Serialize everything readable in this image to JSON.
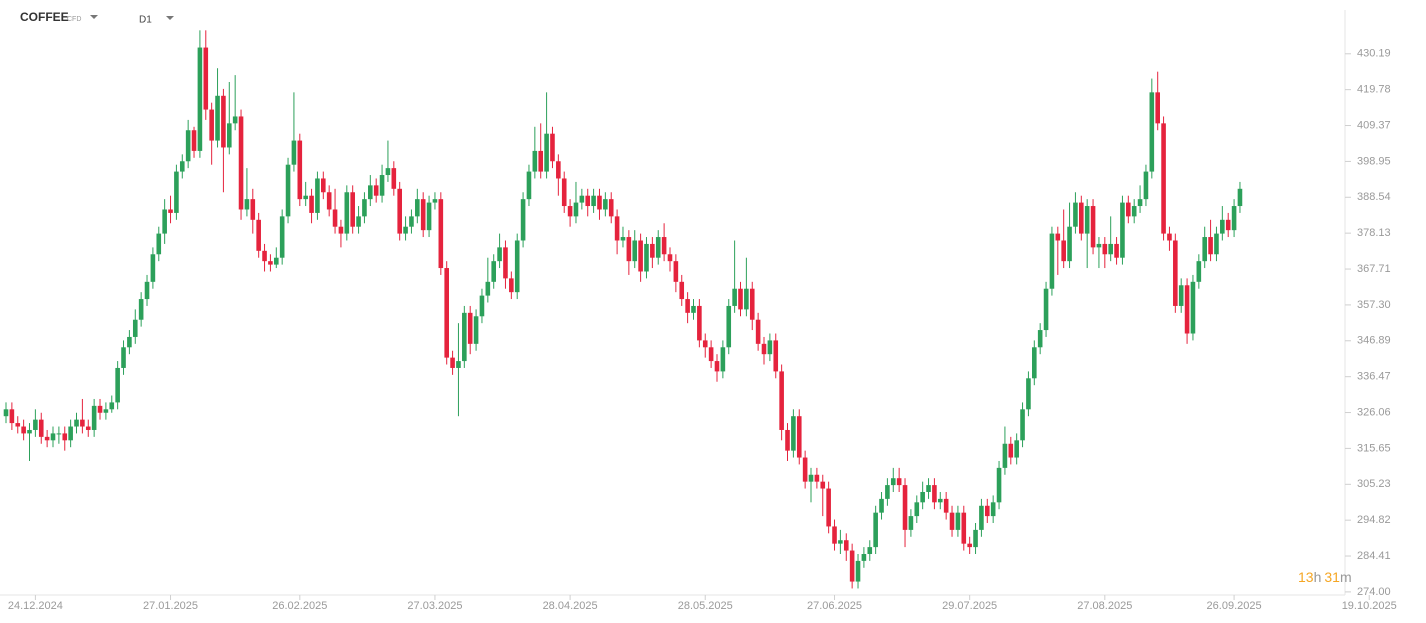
{
  "chart_data": {
    "type": "candlestick",
    "title": "COFFEE",
    "subtitle": "CFD",
    "timeframe": "D1",
    "countdown": [
      "13",
      "h",
      "31",
      "m"
    ],
    "up_color": "#2ca05a",
    "down_color": "#e5233d",
    "ylim": [
      273.1,
      442.9
    ],
    "yticks": [
      {
        "value": 274,
        "label": "274.00"
      },
      284.41,
      294.82,
      305.23,
      315.65,
      326.06,
      336.47,
      346.89,
      {
        "value": 357.3,
        "label": "357.30"
      },
      367.71,
      378.13,
      388.54,
      398.95,
      409.37,
      419.78,
      430.19
    ],
    "categories": [
      null,
      null,
      null,
      null,
      null,
      "24.12.2024",
      null,
      null,
      null,
      null,
      null,
      null,
      null,
      null,
      null,
      null,
      null,
      null,
      null,
      null,
      null,
      null,
      null,
      null,
      null,
      null,
      null,
      null,
      "27.01.2025",
      null,
      null,
      null,
      null,
      null,
      null,
      null,
      null,
      null,
      null,
      null,
      null,
      null,
      null,
      null,
      null,
      null,
      null,
      null,
      null,
      null,
      "26.02.2025",
      null,
      null,
      null,
      null,
      null,
      null,
      null,
      null,
      null,
      null,
      null,
      null,
      null,
      null,
      null,
      null,
      null,
      null,
      null,
      null,
      null,
      null,
      "27.03.2025",
      null,
      null,
      null,
      null,
      null,
      null,
      null,
      null,
      null,
      null,
      null,
      null,
      null,
      null,
      null,
      null,
      null,
      null,
      null,
      null,
      null,
      null,
      "28.04.2025",
      null,
      null,
      null,
      null,
      null,
      null,
      null,
      null,
      null,
      null,
      null,
      null,
      null,
      null,
      null,
      null,
      null,
      null,
      null,
      null,
      null,
      null,
      "28.05.2025",
      null,
      null,
      null,
      null,
      null,
      null,
      null,
      null,
      null,
      null,
      null,
      null,
      null,
      null,
      null,
      null,
      null,
      null,
      null,
      null,
      null,
      "27.06.2025",
      null,
      null,
      null,
      null,
      null,
      null,
      null,
      null,
      null,
      null,
      null,
      null,
      null,
      null,
      null,
      null,
      null,
      null,
      null,
      null,
      null,
      null,
      "29.07.2025",
      null,
      null,
      null,
      null,
      null,
      null,
      null,
      null,
      null,
      null,
      null,
      null,
      null,
      null,
      null,
      null,
      null,
      null,
      null,
      null,
      null,
      null,
      "27.08.2025",
      null,
      null,
      null,
      null,
      null,
      null,
      null,
      null,
      null,
      null,
      null,
      null,
      null,
      null,
      null,
      null,
      null,
      null,
      null,
      null,
      null,
      "26.09.2025",
      null,
      null,
      null,
      null,
      null,
      null,
      null,
      null,
      null,
      null,
      null,
      null,
      null,
      null,
      null,
      null,
      null,
      null,
      null,
      null,
      null,
      null,
      "19.10.2025"
    ],
    "open": [
      325,
      327,
      323,
      322,
      320,
      321,
      324,
      319,
      318,
      320,
      320,
      318,
      322,
      324,
      322,
      321,
      328,
      326,
      327,
      329,
      339,
      345,
      348,
      353,
      359,
      364,
      372,
      378,
      385,
      384,
      396,
      399,
      408,
      402,
      432,
      414,
      405,
      418,
      403,
      410,
      412,
      385,
      388,
      382,
      373,
      370,
      369,
      371,
      383,
      398,
      405,
      388,
      389,
      384,
      394,
      390,
      385,
      380,
      378,
      390,
      380,
      383,
      388,
      392,
      389,
      395,
      397,
      391,
      378,
      380,
      383,
      388,
      379,
      387,
      388,
      368,
      342,
      339,
      341,
      355,
      346,
      354,
      360,
      364,
      370,
      374,
      365,
      361,
      376,
      388,
      396,
      402,
      396,
      407,
      399,
      394,
      386,
      383,
      387,
      389,
      386,
      389,
      385,
      388,
      383,
      376,
      377,
      370,
      376,
      367,
      375,
      371,
      377,
      372,
      370,
      364,
      359,
      355,
      357,
      347,
      345,
      341,
      338,
      345,
      357,
      362,
      356,
      362,
      353,
      346,
      343,
      347,
      338,
      321,
      315,
      325,
      313,
      306,
      308,
      306,
      304,
      293,
      288,
      289,
      286,
      277,
      283,
      285,
      287,
      297,
      301,
      305,
      307,
      305,
      292,
      296,
      300,
      303,
      305,
      300,
      301,
      297,
      292,
      297,
      288,
      287,
      292,
      299,
      296,
      300,
      310,
      317,
      313,
      318,
      327,
      336,
      345,
      350,
      362,
      378,
      376,
      370,
      380,
      387,
      378,
      386,
      374,
      375,
      372,
      375,
      371,
      387,
      383,
      386,
      388,
      396,
      419,
      410,
      378,
      376,
      357,
      363,
      349,
      364,
      370,
      377,
      372,
      378,
      382,
      379,
      386,
      null,
      null,
      null,
      null,
      null,
      null,
      null,
      null,
      null,
      null,
      null,
      null,
      null,
      null,
      null,
      null,
      null,
      null,
      null,
      null,
      null,
      null
    ],
    "high": [
      329,
      329,
      325,
      324,
      323,
      327,
      326,
      321,
      322,
      322,
      322,
      324,
      326,
      330,
      324,
      330,
      330,
      329,
      331,
      341,
      347,
      350,
      356,
      361,
      366,
      374,
      380,
      388,
      389,
      398,
      401,
      411,
      409,
      437,
      437,
      416,
      426,
      420,
      422,
      424,
      414,
      397,
      391,
      384,
      375,
      372,
      374,
      385,
      400,
      419,
      407,
      393,
      391,
      396,
      396,
      392,
      391,
      382,
      392,
      392,
      386,
      390,
      395,
      394,
      398,
      405,
      399,
      393,
      383,
      385,
      391,
      390,
      389,
      390,
      390,
      370,
      344,
      352,
      357,
      357,
      356,
      362,
      371,
      372,
      378,
      376,
      367,
      378,
      390,
      398,
      409,
      410,
      419,
      409,
      401,
      396,
      388,
      393,
      391,
      391,
      391,
      391,
      390,
      390,
      385,
      380,
      379,
      379,
      378,
      377,
      377,
      379,
      381,
      374,
      372,
      366,
      361,
      359,
      359,
      349,
      347,
      343,
      347,
      359,
      376,
      364,
      371,
      364,
      355,
      348,
      349,
      349,
      340,
      323,
      327,
      327,
      315,
      310,
      310,
      308,
      306,
      295,
      292,
      291,
      288,
      285,
      287,
      289,
      299,
      303,
      307,
      310,
      310,
      307,
      298,
      302,
      306,
      307,
      307,
      303,
      303,
      299,
      299,
      299,
      290,
      294,
      301,
      301,
      302,
      312,
      322,
      319,
      320,
      329,
      338,
      347,
      352,
      364,
      380,
      380,
      385,
      387,
      390,
      389,
      388,
      388,
      377,
      377,
      383,
      377,
      389,
      389,
      388,
      392,
      398,
      423,
      425,
      412,
      380,
      378,
      365,
      365,
      366,
      372,
      380,
      382,
      380,
      386,
      384,
      388,
      393,
      null,
      null,
      null,
      null,
      null,
      null,
      null,
      null,
      null,
      null,
      null,
      null,
      null,
      null,
      null,
      null,
      null,
      null,
      null,
      null,
      null,
      null
    ],
    "low": [
      323,
      321,
      320,
      318,
      312,
      319,
      317,
      316,
      316,
      317,
      315,
      316,
      320,
      320,
      319,
      319,
      324,
      324,
      326,
      327,
      337,
      343,
      346,
      351,
      357,
      362,
      370,
      375,
      381,
      382,
      394,
      397,
      400,
      400,
      411,
      398,
      403,
      390,
      401,
      408,
      382,
      383,
      378,
      371,
      367,
      367,
      368,
      369,
      381,
      396,
      386,
      386,
      381,
      382,
      388,
      383,
      378,
      374,
      376,
      378,
      378,
      381,
      386,
      387,
      387,
      393,
      389,
      376,
      376,
      378,
      381,
      377,
      377,
      385,
      366,
      340,
      337,
      325,
      339,
      343,
      344,
      352,
      358,
      362,
      368,
      362,
      359,
      359,
      374,
      386,
      394,
      394,
      394,
      397,
      389,
      384,
      380,
      381,
      385,
      383,
      384,
      382,
      383,
      381,
      372,
      374,
      366,
      368,
      364,
      365,
      368,
      369,
      370,
      367,
      361,
      357,
      352,
      353,
      345,
      342,
      339,
      335,
      336,
      343,
      355,
      354,
      354,
      350,
      344,
      340,
      341,
      336,
      318,
      312,
      313,
      311,
      304,
      300,
      304,
      296,
      291,
      286,
      285,
      283,
      275,
      275,
      281,
      283,
      285,
      295,
      299,
      303,
      303,
      287,
      290,
      294,
      298,
      301,
      298,
      298,
      295,
      290,
      290,
      286,
      285,
      285,
      290,
      294,
      294,
      298,
      308,
      311,
      311,
      316,
      325,
      334,
      343,
      348,
      360,
      366,
      368,
      368,
      378,
      376,
      368,
      372,
      368,
      368,
      370,
      369,
      369,
      381,
      381,
      384,
      386,
      394,
      408,
      376,
      373,
      355,
      355,
      346,
      347,
      362,
      368,
      370,
      370,
      376,
      377,
      377,
      384,
      null,
      null,
      null,
      null,
      null,
      null,
      null,
      null,
      null,
      null,
      null,
      null,
      null,
      null,
      null,
      null,
      null,
      null,
      null,
      null,
      null,
      null
    ],
    "close": [
      327,
      323,
      322,
      320,
      321,
      324,
      319,
      318,
      320,
      320,
      318,
      322,
      324,
      322,
      321,
      328,
      326,
      327,
      329,
      339,
      345,
      348,
      353,
      359,
      364,
      372,
      378,
      385,
      384,
      396,
      399,
      408,
      402,
      432,
      414,
      405,
      418,
      403,
      410,
      412,
      385,
      388,
      382,
      373,
      370,
      369,
      371,
      383,
      398,
      405,
      388,
      389,
      384,
      394,
      390,
      385,
      380,
      378,
      390,
      380,
      383,
      388,
      392,
      389,
      395,
      397,
      391,
      378,
      380,
      383,
      388,
      379,
      387,
      388,
      368,
      342,
      339,
      341,
      355,
      346,
      354,
      360,
      364,
      370,
      374,
      365,
      361,
      376,
      388,
      396,
      402,
      396,
      407,
      399,
      394,
      386,
      383,
      387,
      389,
      386,
      389,
      385,
      388,
      383,
      376,
      377,
      370,
      376,
      367,
      375,
      371,
      377,
      372,
      370,
      364,
      359,
      355,
      357,
      347,
      345,
      341,
      338,
      345,
      357,
      362,
      356,
      362,
      353,
      346,
      343,
      347,
      338,
      321,
      315,
      325,
      313,
      306,
      308,
      306,
      304,
      293,
      288,
      289,
      286,
      277,
      283,
      285,
      287,
      297,
      301,
      305,
      307,
      305,
      292,
      296,
      300,
      303,
      305,
      300,
      301,
      297,
      292,
      297,
      288,
      287,
      292,
      299,
      296,
      300,
      310,
      317,
      313,
      318,
      327,
      336,
      345,
      350,
      362,
      378,
      376,
      370,
      380,
      387,
      378,
      386,
      374,
      375,
      372,
      375,
      371,
      387,
      383,
      386,
      388,
      396,
      419,
      410,
      378,
      376,
      357,
      363,
      349,
      364,
      370,
      377,
      372,
      378,
      382,
      379,
      386,
      391,
      null,
      null,
      null,
      null,
      null,
      null,
      null,
      null,
      null,
      null,
      null,
      null,
      null,
      null,
      null,
      null,
      null,
      null,
      null,
      null,
      null,
      null
    ]
  }
}
